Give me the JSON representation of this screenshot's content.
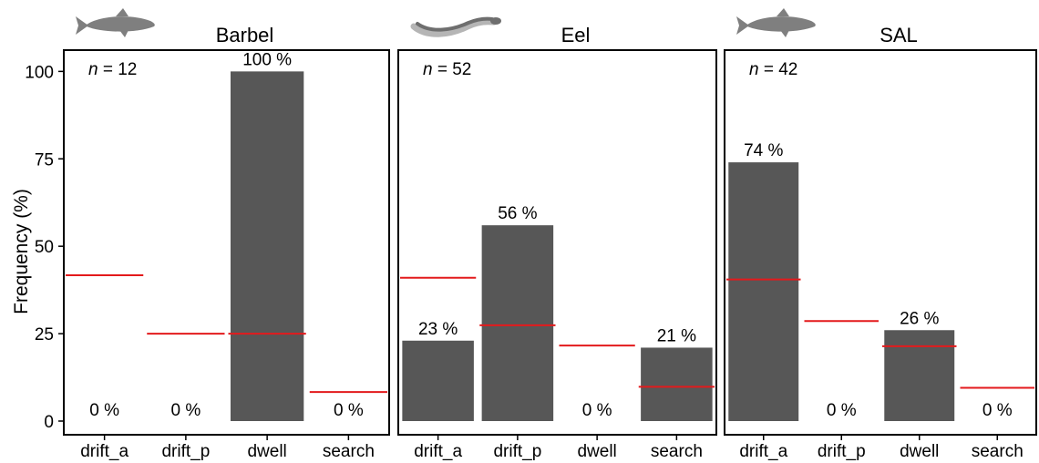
{
  "chart_data": {
    "type": "bar",
    "ylabel": "Frequency (%)",
    "ylim": [
      0,
      110
    ],
    "yticks": [
      0,
      25,
      50,
      75,
      100
    ],
    "grid": false,
    "categories": [
      "drift_a",
      "drift_p",
      "dwell",
      "search"
    ],
    "colors": {
      "bar": "#575757",
      "reference_line": "#e31a1c",
      "frame": "#000000"
    },
    "panels": [
      {
        "title": "Barbel",
        "n_label": "= 12",
        "icon": "barbel-fish-icon",
        "values": [
          0,
          0,
          100,
          0
        ],
        "value_labels": [
          "0 %",
          "0 %",
          "100 %",
          "0 %"
        ],
        "reference": [
          41.7,
          25,
          25,
          8.3
        ]
      },
      {
        "title": "Eel",
        "n_label": "= 52",
        "icon": "eel-icon",
        "values": [
          23,
          56,
          0,
          21
        ],
        "value_labels": [
          "23 %",
          "56 %",
          "0 %",
          "21 %"
        ],
        "reference": [
          41,
          27.4,
          21.6,
          9.8
        ]
      },
      {
        "title": "SAL",
        "n_label": "= 42",
        "icon": "salmonid-fish-icon",
        "values": [
          74,
          0,
          26,
          0
        ],
        "value_labels": [
          "74 %",
          "0 %",
          "26 %",
          "0 %"
        ],
        "reference": [
          40.5,
          28.6,
          21.4,
          9.5
        ]
      }
    ]
  }
}
